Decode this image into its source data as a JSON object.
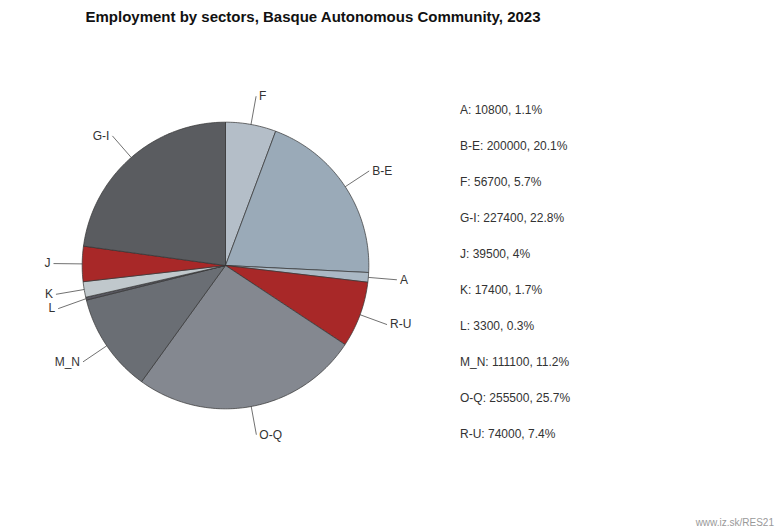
{
  "chart_data": {
    "type": "pie",
    "title": "Employment by sectors, Basque Autonomous Community, 2023",
    "categories": [
      "F",
      "B-E",
      "A",
      "R-U",
      "O-Q",
      "M_N",
      "L",
      "K",
      "J",
      "G-I"
    ],
    "values": [
      56700,
      200000,
      10800,
      74000,
      255500,
      111100,
      3300,
      17400,
      39500,
      227400
    ],
    "colors": [
      "#b4bec8",
      "#9aaab8",
      "#aab8c4",
      "#a82828",
      "#848890",
      "#6a6e74",
      "#585860",
      "#c0c8cc",
      "#a82828",
      "#5a5c60"
    ],
    "annotations": [
      "A: 10800, 1.1%",
      "B-E: 200000, 20.1%",
      "F: 56700, 5.7%",
      "G-I: 227400, 22.8%",
      "J: 39500, 4%",
      "K: 17400, 1.7%",
      "L: 3300, 0.3%",
      "M_N: 111100, 11.2%",
      "O-Q: 255500, 25.7%",
      "R-U: 74000, 7.4%"
    ],
    "caption": "www.iz.sk/RES21"
  }
}
